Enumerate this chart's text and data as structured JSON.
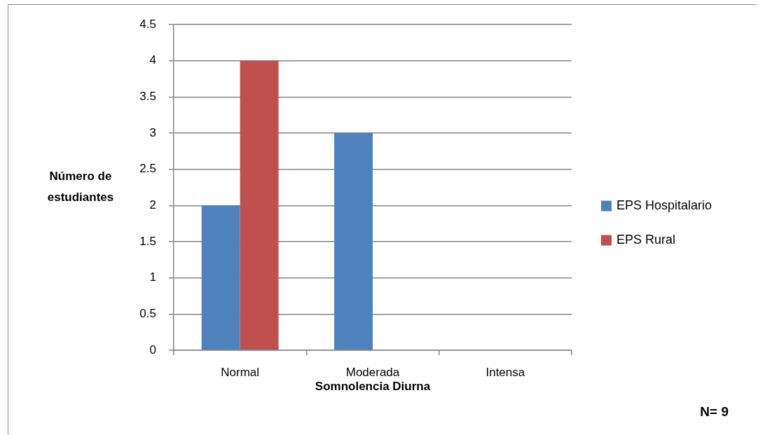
{
  "chart_data": {
    "type": "bar",
    "categories": [
      "Normal",
      "Moderada",
      "Intensa"
    ],
    "series": [
      {
        "name": "EPS Hospitalario",
        "color": "#4f81bd",
        "values": [
          2,
          3,
          0
        ]
      },
      {
        "name": "EPS Rural",
        "color": "#c0504d",
        "values": [
          4,
          0,
          0
        ]
      }
    ],
    "xlabel": "Somnolencia Diurna",
    "ylabel": "Número de estudiantes",
    "annotations": [
      "N= 9"
    ],
    "ylim": [
      0,
      4.5
    ],
    "yticks": [
      0,
      0.5,
      1,
      1.5,
      2,
      2.5,
      3,
      3.5,
      4,
      4.5
    ],
    "grid": "y",
    "legend": "right"
  }
}
